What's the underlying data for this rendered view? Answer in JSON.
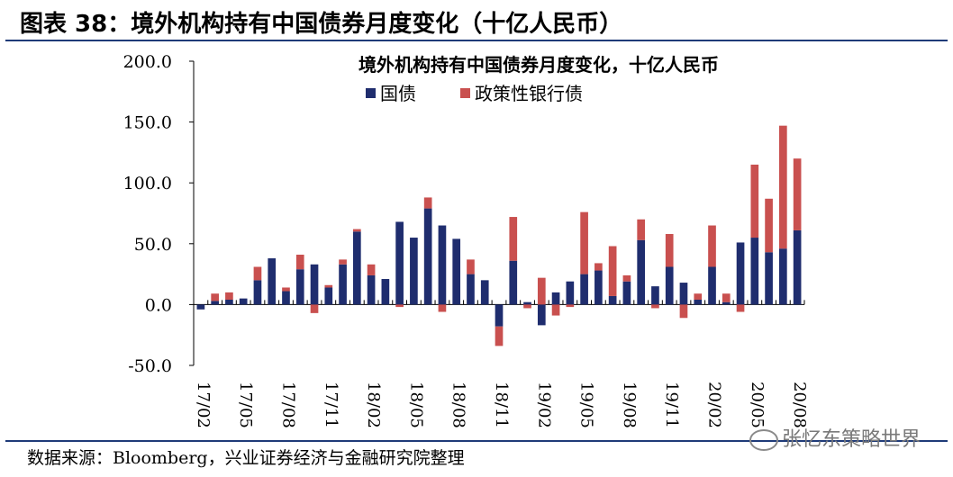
{
  "figure": {
    "title": "图表 38：境外机构持有中国债券月度变化（十亿人民币）",
    "source": "数据来源：Bloomberg，兴业证券经济与金融研究院整理",
    "watermark": "张忆东策略世界"
  },
  "chart_data": {
    "type": "bar",
    "stacked": true,
    "title": "境外机构持有中国债券月度变化，十亿人民币",
    "xlabel": "",
    "ylabel": "",
    "ylim": [
      -50,
      200
    ],
    "yticks": [
      -50,
      0,
      50,
      100,
      150,
      200
    ],
    "ytick_labels": [
      "-50.0",
      "0.0",
      "50.0",
      "100.0",
      "150.0",
      "200.0"
    ],
    "legend_position": "top-right",
    "categories": [
      "17/02",
      "17/03",
      "17/04",
      "17/05",
      "17/06",
      "17/07",
      "17/08",
      "17/09",
      "17/10",
      "17/11",
      "17/12",
      "18/01",
      "18/02",
      "18/03",
      "18/04",
      "18/05",
      "18/06",
      "18/07",
      "18/08",
      "18/09",
      "18/10",
      "18/11",
      "18/12",
      "19/01",
      "19/02",
      "19/03",
      "19/04",
      "19/05",
      "19/06",
      "19/07",
      "19/08",
      "19/09",
      "19/10",
      "19/11",
      "19/12",
      "20/01",
      "20/02",
      "20/03",
      "20/04",
      "20/05",
      "20/06",
      "20/07",
      "20/08"
    ],
    "tick_labels": [
      "17/02",
      "",
      "",
      "17/05",
      "",
      "",
      "17/08",
      "",
      "",
      "17/11",
      "",
      "",
      "18/02",
      "",
      "",
      "18/05",
      "",
      "",
      "18/08",
      "",
      "",
      "18/11",
      "",
      "",
      "19/02",
      "",
      "",
      "19/05",
      "",
      "",
      "19/08",
      "",
      "",
      "19/11",
      "",
      "",
      "20/02",
      "",
      "",
      "20/05",
      "",
      "",
      "20/08"
    ],
    "series": [
      {
        "name": "国债",
        "color": "#1f2d6e",
        "values": [
          -4,
          3,
          4,
          5,
          20,
          38,
          11,
          29,
          33,
          14,
          33,
          60,
          24,
          21,
          68,
          55,
          79,
          65,
          54,
          25,
          20,
          -18,
          36,
          2,
          -17,
          10,
          19,
          25,
          28,
          7,
          19,
          53,
          15,
          31,
          18,
          4,
          31,
          2,
          51,
          55,
          43,
          46,
          61
        ]
      },
      {
        "name": "政策性银行债",
        "color": "#c9504f",
        "values": [
          0,
          6,
          6,
          0,
          11,
          0,
          3,
          12,
          -7,
          2,
          4,
          2,
          9,
          0,
          -2,
          0,
          9,
          -6,
          0,
          12,
          0,
          -16,
          36,
          -3,
          22,
          -9,
          -2,
          51,
          6,
          41,
          5,
          17,
          -3,
          27,
          -11,
          5,
          34,
          7,
          -6,
          60,
          44,
          101,
          59
        ]
      }
    ]
  }
}
